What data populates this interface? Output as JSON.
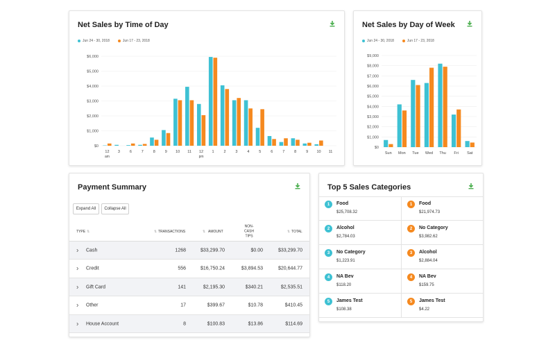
{
  "colors": {
    "teal": "#3ec1d3",
    "orange": "#f5891f",
    "download": "#4caf50"
  },
  "time_of_day": {
    "title": "Net Sales by Time of Day",
    "legend": [
      "Jun 24 - 30, 2018",
      "Jun 17 - 23, 2018"
    ]
  },
  "day_of_week": {
    "title": "Net Sales by Day of Week",
    "legend": [
      "Jun 24 - 30, 2018",
      "Jun 17 - 23, 2018"
    ]
  },
  "chart_data": [
    {
      "type": "bar",
      "title": "Net Sales by Time of Day",
      "categories": [
        "12 am",
        "3",
        "6",
        "7",
        "8",
        "9",
        "10",
        "11",
        "12 pm",
        "1",
        "2",
        "3",
        "4",
        "5",
        "6",
        "7",
        "8",
        "9",
        "10",
        "11"
      ],
      "series": [
        {
          "name": "Jun 24 - 30, 2018",
          "values": [
            20,
            60,
            40,
            60,
            550,
            1050,
            3150,
            3950,
            2800,
            5950,
            4050,
            3050,
            3050,
            1200,
            650,
            250,
            500,
            150,
            100,
            0
          ]
        },
        {
          "name": "Jun 17 - 23, 2018",
          "values": [
            150,
            0,
            150,
            120,
            400,
            850,
            3050,
            3050,
            2050,
            5900,
            3800,
            3200,
            2500,
            2450,
            450,
            500,
            400,
            200,
            350,
            0
          ]
        }
      ],
      "ylim": [
        0,
        6000
      ],
      "yticks": [
        "$0",
        "$1,000",
        "$2,000",
        "$3,000",
        "$4,000",
        "$5,000",
        "$6,000"
      ]
    },
    {
      "type": "bar",
      "title": "Net Sales by Day of Week",
      "categories": [
        "Sun",
        "Mon",
        "Tue",
        "Wed",
        "Thu",
        "Fri",
        "Sat"
      ],
      "series": [
        {
          "name": "Jun 24 - 30, 2018",
          "values": [
            700,
            4200,
            6600,
            6300,
            8200,
            3200,
            600
          ]
        },
        {
          "name": "Jun 17 - 23, 2018",
          "values": [
            300,
            3600,
            6100,
            7800,
            7900,
            3700,
            450
          ]
        }
      ],
      "ylim": [
        0,
        9000
      ],
      "yticks": [
        "$0",
        "$1,000",
        "$2,000",
        "$3,000",
        "$4,000",
        "$5,000",
        "$6,000",
        "$7,000",
        "$8,000",
        "$9,000"
      ]
    }
  ],
  "payment_summary": {
    "title": "Payment Summary",
    "expand_label": "Expand All",
    "collapse_label": "Collapse All",
    "headers": {
      "type": "TYPE",
      "transactions": "TRANSACTIONS",
      "amount": "AMOUNT",
      "tips": "NON-CASH TIPS",
      "total": "TOTAL"
    },
    "rows": [
      {
        "type": "Cash",
        "transactions": "1268",
        "amount": "$33,299.70",
        "tips": "$0.00",
        "total": "$33,299.70"
      },
      {
        "type": "Credit",
        "transactions": "556",
        "amount": "$16,750.24",
        "tips": "$3,894.53",
        "total": "$20,644.77"
      },
      {
        "type": "Gift Card",
        "transactions": "141",
        "amount": "$2,195.30",
        "tips": "$340.21",
        "total": "$2,535.51"
      },
      {
        "type": "Other",
        "transactions": "17",
        "amount": "$399.67",
        "tips": "$10.78",
        "total": "$410.45"
      },
      {
        "type": "House Account",
        "transactions": "8",
        "amount": "$100.83",
        "tips": "$13.86",
        "total": "$114.69"
      }
    ]
  },
  "top5": {
    "title": "Top 5 Sales Categories",
    "left": [
      {
        "rank": "1",
        "name": "Food",
        "value": "$25,708.32"
      },
      {
        "rank": "2",
        "name": "Alcohol",
        "value": "$2,784.03"
      },
      {
        "rank": "3",
        "name": "No Category",
        "value": "$1,223.91"
      },
      {
        "rank": "4",
        "name": "NA Bev",
        "value": "$118.20"
      },
      {
        "rank": "5",
        "name": "James Test",
        "value": "$108.38"
      }
    ],
    "right": [
      {
        "rank": "1",
        "name": "Food",
        "value": "$21,974.73"
      },
      {
        "rank": "2",
        "name": "No Category",
        "value": "$3,982.62"
      },
      {
        "rank": "3",
        "name": "Alcohol",
        "value": "$2,884.04"
      },
      {
        "rank": "4",
        "name": "NA Bev",
        "value": "$159.75"
      },
      {
        "rank": "5",
        "name": "James Test",
        "value": "$4.22"
      }
    ]
  }
}
